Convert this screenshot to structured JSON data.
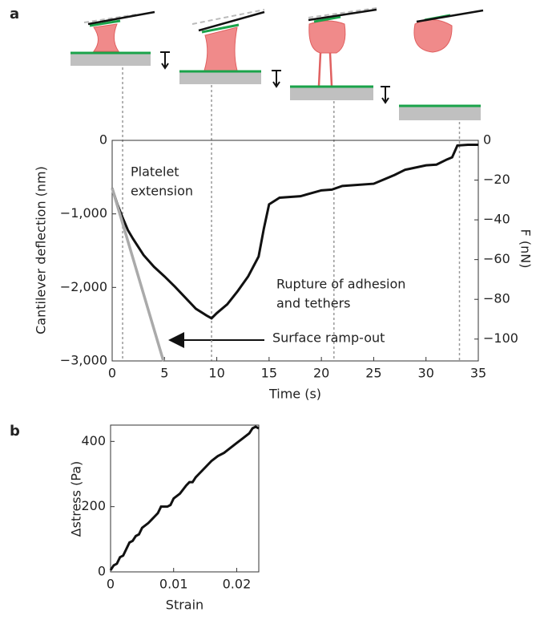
{
  "chart_data": [
    {
      "type": "line",
      "panel": "a",
      "xlabel": "Time (s)",
      "ylabel": "Cantilever deflection (nm)",
      "y2label": "F (nN)",
      "xlim": [
        0,
        35
      ],
      "xticks": [
        0,
        5,
        10,
        15,
        20,
        25,
        30,
        35
      ],
      "ylim": [
        -3000,
        0
      ],
      "yticks": [
        {
          "value": -3000,
          "label": "−3,000"
        },
        {
          "value": -2000,
          "label": "−2,000"
        },
        {
          "value": -1000,
          "label": "−1,000"
        },
        0
      ],
      "y2lim": [
        -111,
        0
      ],
      "y2ticks": [
        {
          "value": -100,
          "label": "−100"
        },
        {
          "value": -80,
          "label": "−80"
        },
        {
          "value": -60,
          "label": "−60"
        },
        {
          "value": -40,
          "label": "−40"
        },
        {
          "value": -20,
          "label": "−20"
        },
        0
      ],
      "event_times": [
        1.0,
        9.5,
        21.2,
        33.2
      ],
      "annotations": [
        {
          "lines": [
            "Platelet",
            "extension"
          ]
        },
        {
          "lines": [
            "Rupture of adhesion",
            "and tethers"
          ]
        },
        {
          "lines": [
            "Surface ramp-out"
          ]
        }
      ],
      "series": [
        {
          "color": "#111111",
          "x": [
            0,
            0.5,
            1,
            1.5,
            2,
            3,
            4,
            5,
            6,
            7,
            8,
            9,
            9.5,
            10,
            11,
            12,
            13,
            14,
            14.5,
            15,
            16,
            18,
            20,
            21,
            22,
            25,
            26,
            27,
            28,
            30,
            31,
            32,
            32.5,
            33,
            34,
            35
          ],
          "values": [
            -650,
            -870,
            -1050,
            -1220,
            -1340,
            -1560,
            -1720,
            -1850,
            -1990,
            -2140,
            -2290,
            -2380,
            -2420,
            -2350,
            -2230,
            -2050,
            -1850,
            -1580,
            -1200,
            -870,
            -780,
            -760,
            -680,
            -670,
            -620,
            -590,
            -530,
            -470,
            -400,
            -340,
            -330,
            -260,
            -230,
            -70,
            -60,
            -60
          ]
        },
        {
          "color": "#aaaaaa",
          "x": [
            0,
            4.9
          ],
          "values": [
            -650,
            -3000
          ]
        }
      ]
    },
    {
      "type": "line",
      "panel": "b",
      "xlabel": "Strain",
      "ylabel": "Δstress (Pa)",
      "xlim": [
        0,
        0.0235
      ],
      "xticks": [
        0,
        0.01,
        0.02
      ],
      "ylim": [
        0,
        450
      ],
      "yticks": [
        0,
        200,
        400
      ],
      "series": [
        {
          "color": "#111111",
          "x": [
            0,
            0.0005,
            0.001,
            0.0015,
            0.002,
            0.0025,
            0.003,
            0.0035,
            0.004,
            0.0045,
            0.005,
            0.006,
            0.0065,
            0.007,
            0.0075,
            0.008,
            0.009,
            0.0095,
            0.01,
            0.011,
            0.012,
            0.0125,
            0.013,
            0.0135,
            0.014,
            0.015,
            0.016,
            0.017,
            0.018,
            0.019,
            0.02,
            0.021,
            0.022,
            0.0225,
            0.023,
            0.0235
          ],
          "values": [
            5,
            20,
            25,
            45,
            50,
            70,
            90,
            95,
            110,
            115,
            135,
            150,
            160,
            170,
            180,
            200,
            200,
            205,
            225,
            240,
            265,
            275,
            275,
            290,
            300,
            320,
            340,
            355,
            365,
            380,
            395,
            410,
            425,
            440,
            445,
            440
          ]
        }
      ]
    }
  ]
}
